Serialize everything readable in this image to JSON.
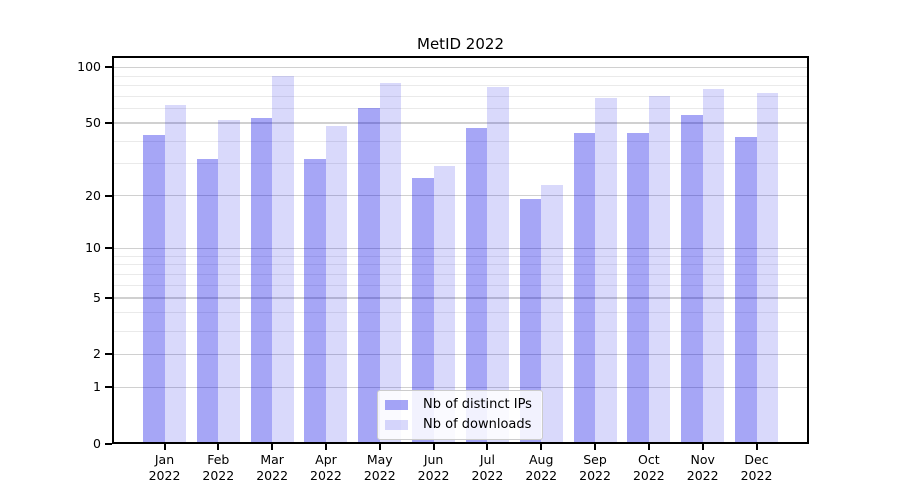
{
  "chart_data": {
    "type": "bar",
    "title": "MetID 2022",
    "categories": [
      "Jan",
      "Feb",
      "Mar",
      "Apr",
      "May",
      "Jun",
      "Jul",
      "Aug",
      "Sep",
      "Oct",
      "Nov",
      "Dec"
    ],
    "x_tick_second_line": "2022",
    "series": [
      {
        "name": "Nb of distinct IPs",
        "color": "rgba(0,0,230,0.35)",
        "values": [
          43,
          32,
          53,
          32,
          60,
          25,
          47,
          19,
          44,
          44,
          55,
          42
        ]
      },
      {
        "name": "Nb of downloads",
        "color": "rgba(0,0,230,0.15)",
        "values": [
          63,
          52,
          90,
          48,
          82,
          29,
          78,
          23,
          68,
          70,
          76,
          73
        ]
      }
    ],
    "yscale": "log1p",
    "ylim": [
      0,
      115
    ],
    "y_tick_labels": [
      0,
      1,
      2,
      5,
      10,
      20,
      50,
      100
    ],
    "y_minor_gridlines": [
      3,
      4,
      6,
      7,
      8,
      9,
      30,
      40,
      60,
      70,
      80,
      90
    ],
    "grid": true,
    "legend_position": "lower center",
    "colors": {
      "grid_major": "#d0d0d0",
      "grid_minor": "#eaeaea",
      "spine": "#000000",
      "legend_border": "#cccccc",
      "legend_bg": "rgba(255,255,255,0.85)",
      "text": "#000000"
    }
  }
}
